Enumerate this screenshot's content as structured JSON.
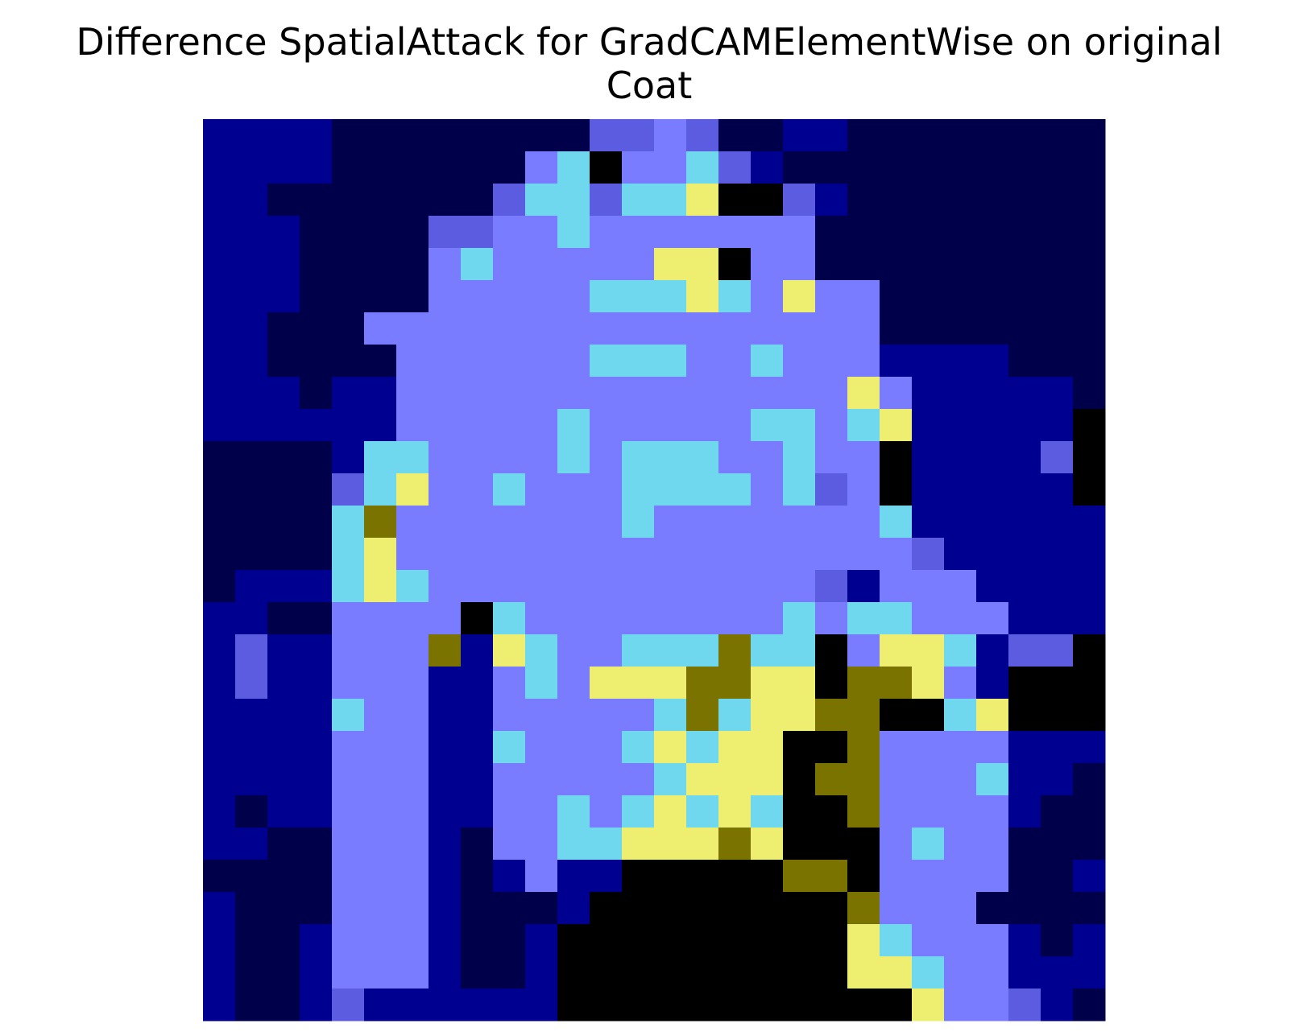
{
  "figure": {
    "title_line1": "Difference SpatialAttack for GradCAMElementWise on original",
    "title_line2": "Coat"
  },
  "chart_data": {
    "type": "heatmap",
    "title": "Difference SpatialAttack for GradCAMElementWise on original Coat",
    "axes": "off",
    "grid": false,
    "legend": "none",
    "rows": 28,
    "cols": 28,
    "cmap": "#00004a,#000090,#5c5ce0,#7a7cff,#6fd8ee,#eeee70,#7a7300",
    "values": [
      "1111000000002232001100000000",
      "1111000000347334210000000000",
      "1100000002442445772100000000",
      "1110000223343333333000000000",
      "1110000343333355733000000000",
      "1110000333334445435330000000",
      "1100033333333333333330000000",
      "1100003333334443343331111000",
      "1110113333333333333353111110",
      "1111113333343333344345111117",
      "0000144333343444334337111127",
      "0000245334333444434237111117",
      "0000463333333433333334111111",
      "0000453333333333333333211111",
      "0111454333333333333213331111",
      "1100333374333333334344333111",
      "1211333615433444644735541227",
      "1211333113435556655766531777",
      "1111433113333346455667745777",
      "1111333114333454557763333111",
      "1111333113333345559663334110",
      "1011333113343454548863333100",
      "1100333103344555659883433000",
      "0000333101311777776673333001",
      "1000333100017777777763330000",
      "1001333100177777777754333101",
      "1001333100177777777755433111",
      "1001211111177777777778533210"
    ]
  }
}
